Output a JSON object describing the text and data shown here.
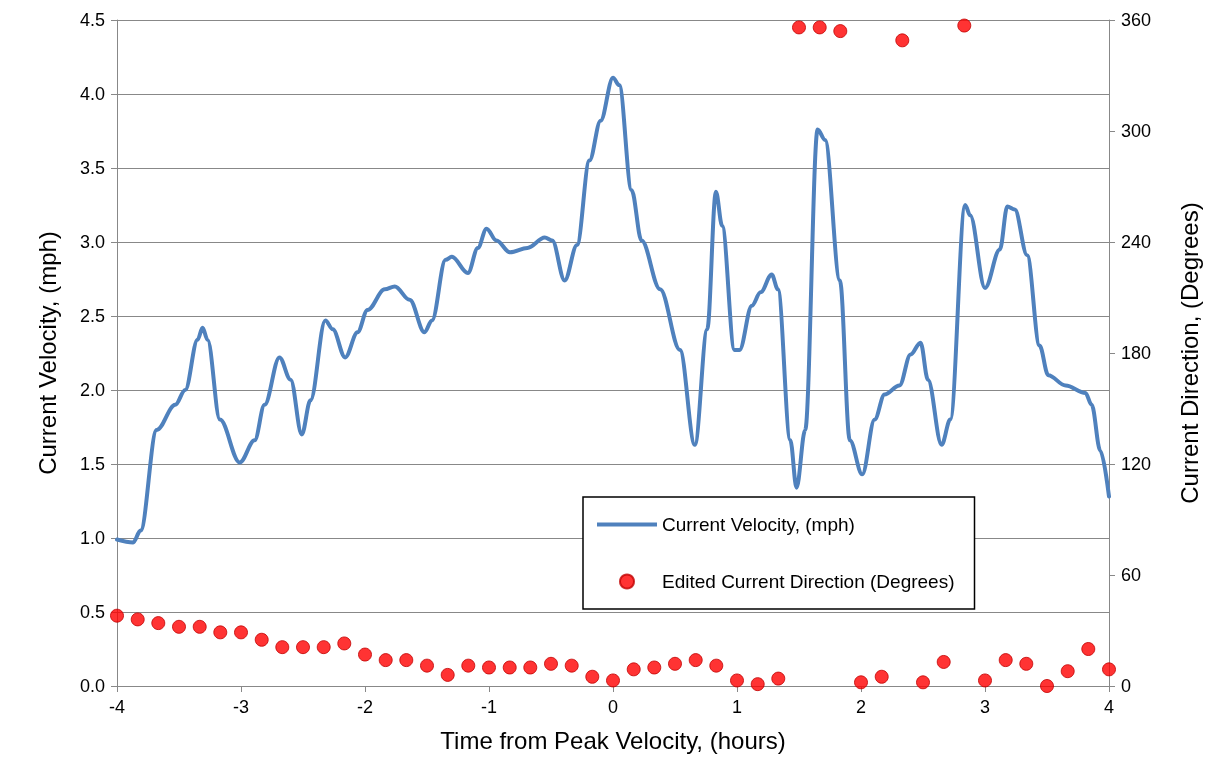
{
  "chart_data": {
    "type": "line",
    "xlabel": "Time from Peak Velocity, (hours)",
    "ylabel": "Current Velocity, (mph)",
    "y2label": "Current Direction, (Degrees)",
    "xlim": [
      -4,
      4
    ],
    "xticks": [
      -4,
      -3,
      -2,
      -1,
      0,
      1,
      2,
      3,
      4
    ],
    "ylim": [
      0,
      4.5
    ],
    "yticks": [
      {
        "value": 0,
        "label": "0.0"
      },
      0.5,
      {
        "value": 1,
        "label": "1.0"
      },
      1.5,
      {
        "value": 2,
        "label": "2.0"
      },
      2.5,
      {
        "value": 3,
        "label": "3.0"
      },
      3.5,
      {
        "value": 4,
        "label": "4.0"
      },
      4.5
    ],
    "y2lim": [
      0,
      360
    ],
    "y2ticks": [
      0,
      60,
      120,
      180,
      240,
      300,
      360
    ],
    "grid": "y",
    "legend": "bottom right",
    "series": [
      {
        "name": "Current Velocity, (mph)",
        "color": "#4f81bd",
        "marker": "none",
        "line_style": "solid",
        "x": [
          -4,
          -3.87,
          -3.81,
          -3.68,
          -3.53,
          -3.45,
          -3.35,
          -3.31,
          -3.27,
          -3.17,
          -3.01,
          -2.89,
          -2.81,
          -2.69,
          -2.6,
          -2.51,
          -2.44,
          -2.32,
          -2.26,
          -2.16,
          -2.06,
          -1.98,
          -1.84,
          -1.76,
          -1.64,
          -1.52,
          -1.46,
          -1.35,
          -1.3,
          -1.17,
          -1.09,
          -1.02,
          -0.94,
          -0.83,
          -0.69,
          -0.55,
          -0.49,
          -0.39,
          -0.29,
          -0.19,
          -0.1,
          0,
          0.05,
          0.15,
          0.23,
          0.38,
          0.54,
          0.66,
          0.76,
          0.83,
          0.88,
          0.98,
          1.02,
          1.12,
          1.19,
          1.28,
          1.33,
          1.43,
          1.48,
          1.55,
          1.65,
          1.71,
          1.83,
          1.91,
          2.01,
          2.11,
          2.19,
          2.31,
          2.4,
          2.48,
          2.54,
          2.65,
          2.72,
          2.84,
          2.88,
          3.0,
          3.12,
          3.18,
          3.24,
          3.34,
          3.44,
          3.51,
          3.65,
          3.81,
          3.86,
          3.93,
          4.0
        ],
        "values": [
          0.99,
          0.97,
          1.05,
          1.73,
          1.9,
          2.0,
          2.34,
          2.42,
          2.34,
          1.8,
          1.51,
          1.66,
          1.9,
          2.22,
          2.07,
          1.7,
          1.93,
          2.47,
          2.41,
          2.22,
          2.39,
          2.54,
          2.68,
          2.7,
          2.61,
          2.39,
          2.47,
          2.88,
          2.9,
          2.79,
          2.96,
          3.09,
          3.01,
          2.93,
          2.96,
          3.03,
          3.01,
          2.74,
          2.98,
          3.55,
          3.82,
          4.11,
          4.06,
          3.35,
          3.01,
          2.68,
          2.27,
          1.63,
          2.41,
          3.34,
          3.11,
          2.27,
          2.27,
          2.57,
          2.66,
          2.78,
          2.68,
          1.66,
          1.34,
          1.73,
          3.76,
          3.69,
          2.74,
          1.66,
          1.43,
          1.8,
          1.97,
          2.03,
          2.24,
          2.32,
          2.07,
          1.63,
          1.8,
          3.25,
          3.18,
          2.69,
          2.95,
          3.24,
          3.22,
          2.91,
          2.3,
          2.1,
          2.03,
          1.98,
          1.9,
          1.59,
          1.28
        ]
      },
      {
        "name": "Edited Current Direction (Degrees)",
        "type": "scatter",
        "axis": "y2",
        "color": "#ff0000",
        "marker": "circle",
        "x": [
          -4,
          -3.833,
          -3.667,
          -3.5,
          -3.333,
          -3.167,
          -3,
          -2.833,
          -2.667,
          -2.5,
          -2.333,
          -2.167,
          -2,
          -1.833,
          -1.667,
          -1.5,
          -1.333,
          -1.167,
          -1,
          -0.833,
          -0.667,
          -0.5,
          -0.333,
          -0.167,
          0,
          0.167,
          0.333,
          0.5,
          0.667,
          0.833,
          1,
          1.167,
          1.333,
          1.5,
          1.667,
          1.833,
          2,
          2.167,
          2.333,
          2.5,
          2.667,
          2.833,
          3,
          3.167,
          3.333,
          3.5,
          3.667,
          3.833,
          4
        ],
        "values": [
          38,
          36,
          34,
          32,
          32,
          29,
          29,
          25,
          21,
          21,
          21,
          23,
          17,
          14,
          14,
          11,
          6,
          11,
          10,
          10,
          10,
          12,
          11,
          5,
          3,
          9,
          10,
          12,
          14,
          11,
          3,
          1,
          4,
          356,
          356,
          354,
          2,
          5,
          349,
          2,
          13,
          357,
          3,
          14,
          12,
          0,
          8,
          20,
          9
        ]
      }
    ]
  }
}
